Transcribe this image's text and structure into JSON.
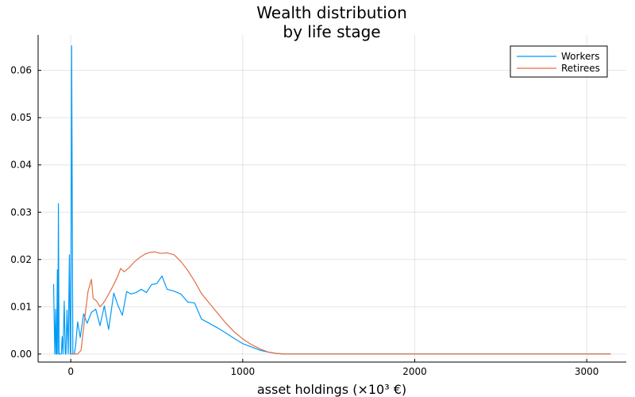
{
  "chart_data": {
    "type": "line",
    "title_lines": [
      "Wealth distribution",
      "by life stage"
    ],
    "xlabel": "asset holdings (×10³ €)",
    "ylabel": "",
    "xlim": [
      -190,
      3230
    ],
    "ylim": [
      -0.0017,
      0.0675
    ],
    "xticks": [
      0,
      1000,
      2000,
      3000
    ],
    "xtick_labels": [
      "0",
      "1000",
      "2000",
      "3000"
    ],
    "yticks": [
      0,
      0.01,
      0.02,
      0.03,
      0.04,
      0.05,
      0.06
    ],
    "ytick_labels": [
      "0.00",
      "0.01",
      "0.02",
      "0.03",
      "0.04",
      "0.05",
      "0.06"
    ],
    "grid": true,
    "legend": "top-right",
    "series": [
      {
        "name": "Workers",
        "color": "#009af9",
        "x": [
          -100,
          -93,
          -88,
          -85,
          -82,
          -78,
          -75,
          -72,
          -68,
          -62,
          -55,
          -50,
          -45,
          -38,
          -32,
          -28,
          -22,
          -15,
          -8,
          -3,
          0,
          5,
          12,
          20,
          28,
          40,
          55,
          75,
          95,
          120,
          145,
          170,
          195,
          220,
          250,
          275,
          300,
          325,
          350,
          380,
          410,
          440,
          470,
          500,
          530,
          560,
          600,
          640,
          680,
          720,
          760,
          800,
          850,
          900,
          950,
          1000,
          1050,
          1100,
          1150,
          1200,
          1250,
          1300,
          1400,
          1600,
          2000,
          2500,
          3000,
          3140
        ],
        "y": [
          0.0148,
          0.0,
          0.0095,
          0.0,
          0.0,
          0.0178,
          0.0,
          0.0318,
          0.0,
          0.0,
          0.0,
          0.0037,
          0.0,
          0.0112,
          0.0,
          0.0,
          0.0093,
          0.0,
          0.021,
          0.0,
          0.0,
          0.0652,
          0.0,
          0.0,
          0.0017,
          0.0068,
          0.0035,
          0.0085,
          0.0065,
          0.0088,
          0.0095,
          0.006,
          0.0102,
          0.0052,
          0.0129,
          0.0102,
          0.0082,
          0.0132,
          0.0127,
          0.013,
          0.0137,
          0.013,
          0.0147,
          0.0149,
          0.0165,
          0.0137,
          0.0133,
          0.0127,
          0.011,
          0.0108,
          0.0074,
          0.0066,
          0.0056,
          0.0045,
          0.0033,
          0.0022,
          0.0015,
          0.0008,
          0.0004,
          0.0001,
          0.0,
          0.0,
          0.0,
          0.0,
          0.0,
          0.0,
          0.0,
          0.0
        ]
      },
      {
        "name": "Retirees",
        "color": "#e26f46",
        "x": [
          0,
          40,
          60,
          80,
          100,
          120,
          130,
          150,
          170,
          190,
          210,
          240,
          270,
          290,
          310,
          340,
          370,
          400,
          430,
          460,
          490,
          520,
          560,
          600,
          640,
          680,
          720,
          760,
          800,
          850,
          900,
          950,
          1000,
          1050,
          1100,
          1150,
          1200,
          1250,
          1300,
          1400,
          1600,
          2000,
          2500,
          3000,
          3140
        ],
        "y": [
          0.0,
          0.0,
          0.0008,
          0.0072,
          0.0132,
          0.0158,
          0.0118,
          0.0112,
          0.01,
          0.0108,
          0.012,
          0.014,
          0.0162,
          0.0181,
          0.0174,
          0.0183,
          0.0195,
          0.0204,
          0.0211,
          0.0215,
          0.0216,
          0.0213,
          0.0214,
          0.021,
          0.0196,
          0.0177,
          0.0154,
          0.0128,
          0.011,
          0.0088,
          0.0066,
          0.0047,
          0.0032,
          0.002,
          0.0011,
          0.0004,
          0.0001,
          0.0,
          0.0,
          0.0,
          0.0,
          0.0,
          0.0,
          0.0,
          0.0
        ]
      }
    ]
  }
}
